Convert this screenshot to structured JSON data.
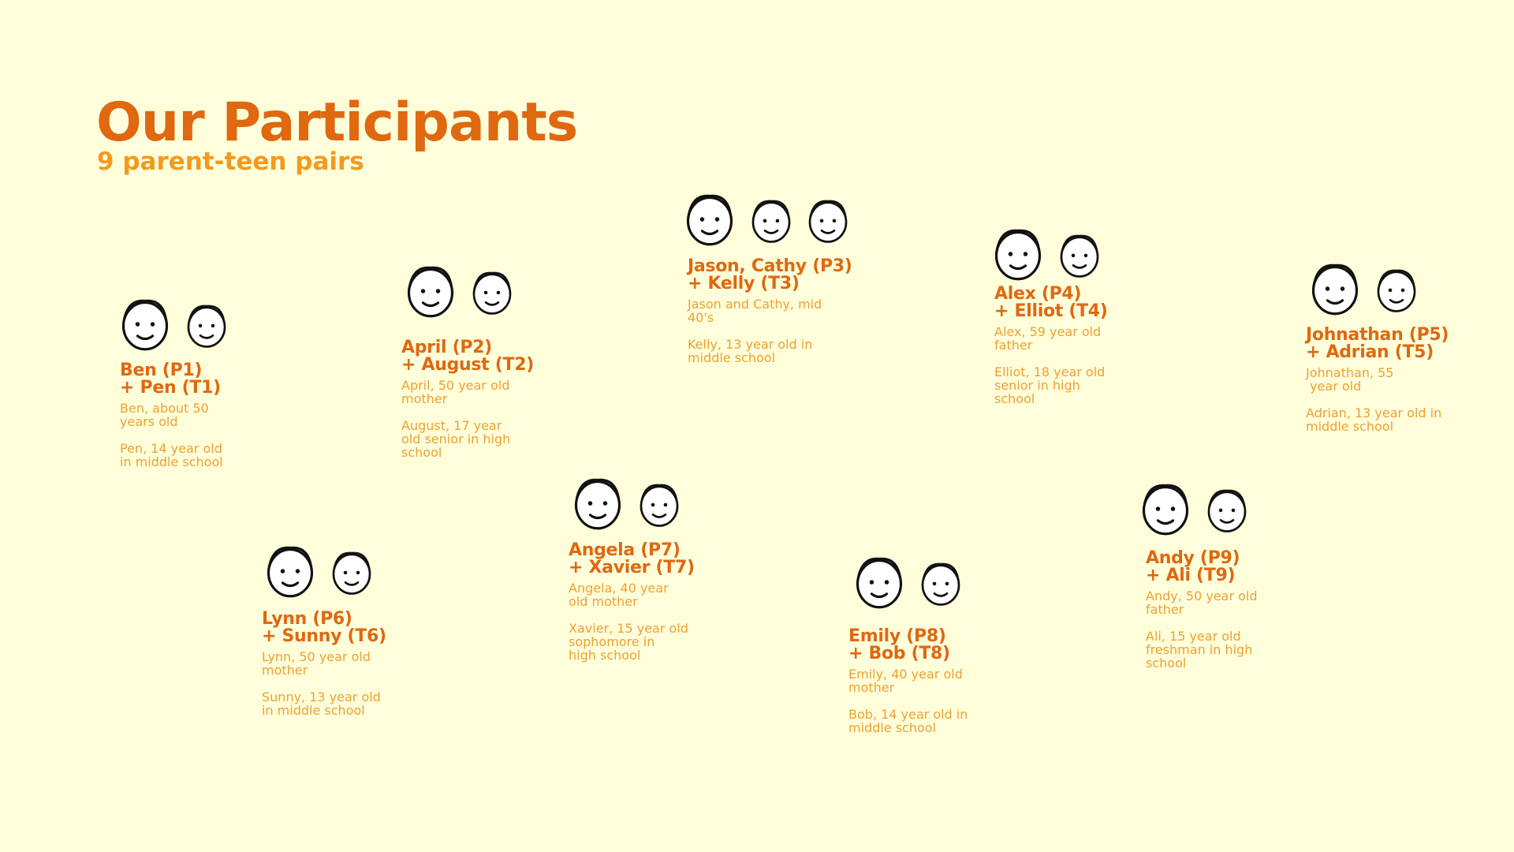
{
  "header": {
    "title": "Our Participants",
    "subtitle": "9 parent-teen pairs"
  },
  "participants": [
    {
      "name": [
        "Ben (P1)",
        "+ Pen (T1)"
      ],
      "notes": [
        [
          "Ben, about 50",
          "years old"
        ],
        [
          "Pen, 14 year old",
          "in middle school"
        ]
      ]
    },
    {
      "name": [
        "April (P2)",
        "+ August (T2)"
      ],
      "notes": [
        [
          "April, 50 year old",
          "mother"
        ],
        [
          "August, 17 year",
          "old senior in high",
          "school"
        ]
      ]
    },
    {
      "name": [
        "Jason, Cathy (P3)",
        "+ Kelly (T3)"
      ],
      "notes": [
        [
          "Jason and Cathy, mid",
          "40's"
        ],
        [
          "Kelly, 13 year old in",
          "middle school"
        ]
      ]
    },
    {
      "name": [
        "Alex (P4)",
        "+ Elliot (T4)"
      ],
      "notes": [
        [
          "Alex, 59 year old",
          "father"
        ],
        [
          "Elliot, 18 year old",
          "senior in high",
          "school"
        ]
      ]
    },
    {
      "name": [
        "Johnathan (P5)",
        "+ Adrian (T5)"
      ],
      "notes": [
        [
          "Johnathan, 55",
          " year old"
        ],
        [
          "Adrian, 13 year old in",
          "middle school"
        ]
      ]
    },
    {
      "name": [
        "Lynn (P6)",
        "+ Sunny (T6)"
      ],
      "notes": [
        [
          "Lynn, 50 year old",
          "mother"
        ],
        [
          "Sunny, 13 year old",
          "in middle school"
        ]
      ]
    },
    {
      "name": [
        "Angela (P7)",
        "+ Xavier (T7)"
      ],
      "notes": [
        [
          "Angela, 40 year",
          "old mother"
        ],
        [
          "Xavier, 15 year old",
          "sophomore in",
          "high school"
        ]
      ]
    },
    {
      "name": [
        "Emily (P8)",
        "+ Bob (T8)"
      ],
      "notes": [
        [
          "Emily, 40 year old",
          "mother"
        ],
        [
          "Bob, 14 year old in",
          "middle school"
        ]
      ]
    },
    {
      "name": [
        "Andy (P9)",
        "+ Ali (T9)"
      ],
      "notes": [
        [
          "Andy, 50 year old",
          "father"
        ],
        [
          "Ali, 15 year old",
          "freshman in high",
          "school"
        ]
      ]
    }
  ]
}
